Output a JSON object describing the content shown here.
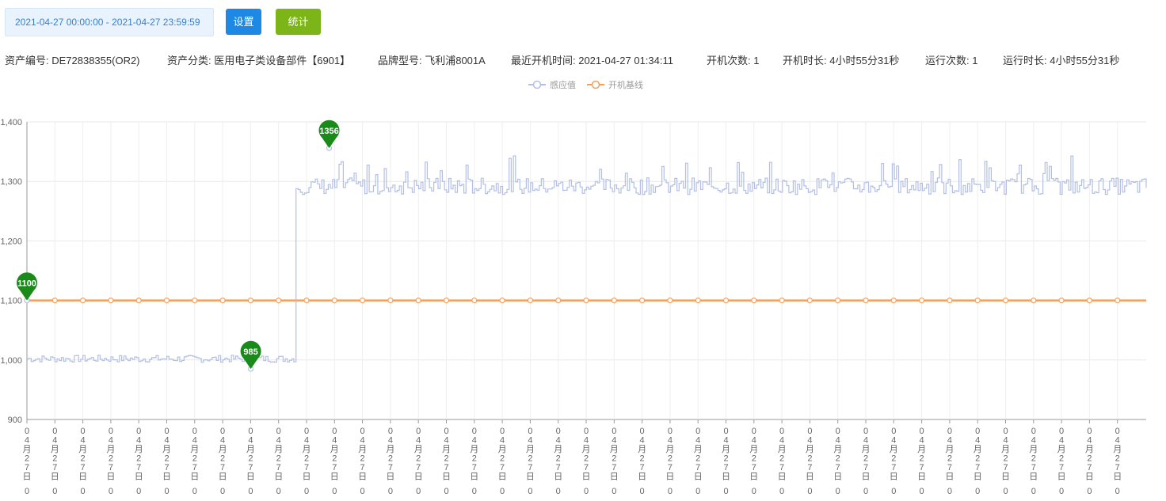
{
  "toolbar": {
    "date_range": "2021-04-27 00:00:00 - 2021-04-27 23:59:59",
    "settings_label": "设置",
    "stats_label": "统计"
  },
  "info": [
    {
      "key": "asset_no",
      "text": "资产编号: DE72838355(OR2)"
    },
    {
      "key": "asset_category",
      "text": "资产分类: 医用电子类设备部件【6901】"
    },
    {
      "key": "brand_model",
      "text": "品牌型号: 飞利浦8001A"
    },
    {
      "key": "last_power_on",
      "text": "最近开机时间: 2021-04-27 01:34:11"
    },
    {
      "key": "power_on_count",
      "text": "开机次数: 1"
    },
    {
      "key": "power_on_duration",
      "text": "开机时长: 4小时55分31秒"
    },
    {
      "key": "run_count",
      "text": "运行次数: 1"
    },
    {
      "key": "run_duration",
      "text": "运行时长: 4小时55分31秒"
    }
  ],
  "colors": {
    "sensor": "#b3bfe6",
    "baseline": "#f5a05a",
    "marker": "#1a8a1a",
    "button_blue": "#1e88e5",
    "button_green": "#7cb518"
  },
  "chart_data": {
    "type": "line",
    "legend": [
      "感应值",
      "开机基线"
    ],
    "legend_position": "top-center",
    "ylim": [
      900,
      1400
    ],
    "yticks": [
      "900",
      "1,000",
      "1,100",
      "1,200",
      "1,300",
      "1,400"
    ],
    "x_tick_label": [
      "0",
      "4",
      "月",
      "2",
      "7",
      "日",
      "0"
    ],
    "x_tick_count": 40,
    "grid": true,
    "series": [
      {
        "name": "感应值",
        "segments": [
          {
            "from": 0,
            "to": 0.24,
            "base": 1002,
            "noise": 6
          },
          {
            "from": 0.24,
            "to": 1.0,
            "base": 1292,
            "noise": 14
          }
        ],
        "step_at": 0.24
      },
      {
        "name": "开机基线",
        "constant": 1100
      }
    ],
    "markers": [
      {
        "label": "1100",
        "x": 0.0,
        "y": 1100
      },
      {
        "label": "985",
        "x": 0.2,
        "y": 985
      },
      {
        "label": "1356",
        "x": 0.27,
        "y": 1356
      }
    ]
  }
}
